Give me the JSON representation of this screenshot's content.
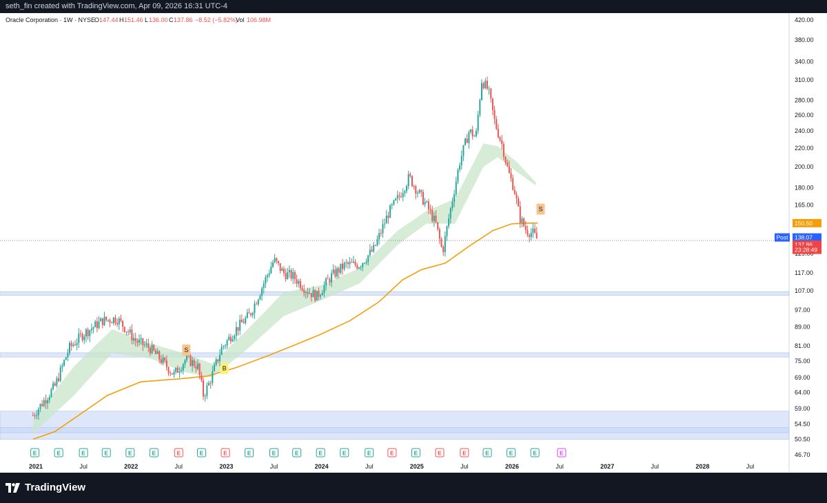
{
  "header": {
    "credit": "seth_fin created with TradingView.com, Apr 09, 2026 16:31 UTC-4"
  },
  "legend": {
    "symbol": "Oracle Corporation · 1W · NYSE",
    "o_label": "O",
    "o": "147.44",
    "h_label": "H",
    "h": "151.46",
    "l_label": "L",
    "l": "136.00",
    "c_label": "C",
    "c": "137.86",
    "change": "−8.52 (−5.82%)",
    "vol_label": "Vol",
    "vol": "106.98M"
  },
  "footer": {
    "brand": "TradingView"
  },
  "colors": {
    "up": "#26a69a",
    "down": "#ef5350",
    "ma": "#f59e0b",
    "ribbon": "#c8e6c9",
    "zone": "#c7d7f5",
    "price_badge": "#ef4444",
    "post_badge": "#2962ff",
    "ma_badge": "#f59e0b"
  },
  "chart_data": {
    "type": "candlestick",
    "scale": "log",
    "ylim": [
      45,
      430
    ],
    "y_ticks": [
      "420.00",
      "380.00",
      "340.00",
      "310.00",
      "280.00",
      "260.00",
      "240.00",
      "220.00",
      "200.00",
      "180.00",
      "165.00",
      "150.50",
      "138.07",
      "137.86",
      "129.00",
      "117.00",
      "107.00",
      "97.00",
      "89.00",
      "81.00",
      "75.00",
      "69.00",
      "64.00",
      "59.00",
      "54.50",
      "50.50",
      "46.70"
    ],
    "x_labels": [
      "2021",
      "Jul",
      "2022",
      "Jul",
      "2023",
      "Jul",
      "2024",
      "Jul",
      "2025",
      "Jul",
      "2026",
      "Jul",
      "2027",
      "Jul",
      "2028",
      "Jul"
    ],
    "price_anchors": [
      {
        "t": 2020.97,
        "p": 57
      },
      {
        "t": 2021.05,
        "p": 60
      },
      {
        "t": 2021.2,
        "p": 66
      },
      {
        "t": 2021.35,
        "p": 80
      },
      {
        "t": 2021.5,
        "p": 86
      },
      {
        "t": 2021.7,
        "p": 92
      },
      {
        "t": 2021.85,
        "p": 93
      },
      {
        "t": 2021.95,
        "p": 88
      },
      {
        "t": 2022.05,
        "p": 83
      },
      {
        "t": 2022.2,
        "p": 80
      },
      {
        "t": 2022.35,
        "p": 74
      },
      {
        "t": 2022.45,
        "p": 70
      },
      {
        "t": 2022.58,
        "p": 76
      },
      {
        "t": 2022.7,
        "p": 73
      },
      {
        "t": 2022.76,
        "p": 63
      },
      {
        "t": 2022.82,
        "p": 67
      },
      {
        "t": 2022.95,
        "p": 80
      },
      {
        "t": 2023.1,
        "p": 88
      },
      {
        "t": 2023.25,
        "p": 95
      },
      {
        "t": 2023.4,
        "p": 112
      },
      {
        "t": 2023.5,
        "p": 125
      },
      {
        "t": 2023.6,
        "p": 117
      },
      {
        "t": 2023.7,
        "p": 115
      },
      {
        "t": 2023.85,
        "p": 107
      },
      {
        "t": 2023.95,
        "p": 104
      },
      {
        "t": 2024.1,
        "p": 115
      },
      {
        "t": 2024.25,
        "p": 122
      },
      {
        "t": 2024.4,
        "p": 122
      },
      {
        "t": 2024.55,
        "p": 132
      },
      {
        "t": 2024.7,
        "p": 158
      },
      {
        "t": 2024.82,
        "p": 173
      },
      {
        "t": 2024.92,
        "p": 190
      },
      {
        "t": 2025.0,
        "p": 178
      },
      {
        "t": 2025.1,
        "p": 165
      },
      {
        "t": 2025.2,
        "p": 150
      },
      {
        "t": 2025.27,
        "p": 130
      },
      {
        "t": 2025.35,
        "p": 160
      },
      {
        "t": 2025.45,
        "p": 205
      },
      {
        "t": 2025.55,
        "p": 240
      },
      {
        "t": 2025.62,
        "p": 232
      },
      {
        "t": 2025.68,
        "p": 310
      },
      {
        "t": 2025.75,
        "p": 295
      },
      {
        "t": 2025.82,
        "p": 250
      },
      {
        "t": 2025.9,
        "p": 222
      },
      {
        "t": 2025.96,
        "p": 195
      },
      {
        "t": 2026.02,
        "p": 180
      },
      {
        "t": 2026.08,
        "p": 155
      },
      {
        "t": 2026.15,
        "p": 145
      },
      {
        "t": 2026.22,
        "p": 143
      },
      {
        "t": 2026.27,
        "p": 138
      }
    ],
    "ma_series": [
      {
        "t": 2020.97,
        "p": 50.5
      },
      {
        "t": 2021.2,
        "p": 52.5
      },
      {
        "t": 2021.45,
        "p": 57
      },
      {
        "t": 2021.75,
        "p": 63
      },
      {
        "t": 2022.1,
        "p": 67.5
      },
      {
        "t": 2022.5,
        "p": 68.5
      },
      {
        "t": 2022.8,
        "p": 69.5
      },
      {
        "t": 2023.1,
        "p": 72.5
      },
      {
        "t": 2023.4,
        "p": 76.5
      },
      {
        "t": 2023.7,
        "p": 81
      },
      {
        "t": 2024.0,
        "p": 86
      },
      {
        "t": 2024.3,
        "p": 92
      },
      {
        "t": 2024.6,
        "p": 101
      },
      {
        "t": 2024.85,
        "p": 113
      },
      {
        "t": 2025.05,
        "p": 119
      },
      {
        "t": 2025.3,
        "p": 123
      },
      {
        "t": 2025.55,
        "p": 134
      },
      {
        "t": 2025.8,
        "p": 145
      },
      {
        "t": 2026.0,
        "p": 150
      },
      {
        "t": 2026.15,
        "p": 150.5
      },
      {
        "t": 2026.27,
        "p": 150.5
      }
    ],
    "ribbon_upper": [
      {
        "t": 2020.97,
        "p": 56
      },
      {
        "t": 2021.4,
        "p": 73
      },
      {
        "t": 2021.8,
        "p": 88
      },
      {
        "t": 2022.2,
        "p": 82
      },
      {
        "t": 2022.55,
        "p": 78
      },
      {
        "t": 2022.85,
        "p": 74
      },
      {
        "t": 2023.2,
        "p": 87
      },
      {
        "t": 2023.6,
        "p": 106
      },
      {
        "t": 2024.0,
        "p": 110
      },
      {
        "t": 2024.4,
        "p": 120
      },
      {
        "t": 2024.8,
        "p": 145
      },
      {
        "t": 2025.1,
        "p": 160
      },
      {
        "t": 2025.4,
        "p": 170
      },
      {
        "t": 2025.7,
        "p": 225
      },
      {
        "t": 2025.85,
        "p": 222
      },
      {
        "t": 2026.05,
        "p": 205
      },
      {
        "t": 2026.25,
        "p": 185
      }
    ],
    "ribbon_lower": [
      {
        "t": 2020.97,
        "p": 52
      },
      {
        "t": 2021.4,
        "p": 63
      },
      {
        "t": 2021.8,
        "p": 78
      },
      {
        "t": 2022.2,
        "p": 76
      },
      {
        "t": 2022.55,
        "p": 71
      },
      {
        "t": 2022.85,
        "p": 69
      },
      {
        "t": 2023.2,
        "p": 79
      },
      {
        "t": 2023.6,
        "p": 94
      },
      {
        "t": 2024.0,
        "p": 102
      },
      {
        "t": 2024.4,
        "p": 111
      },
      {
        "t": 2024.8,
        "p": 135
      },
      {
        "t": 2025.1,
        "p": 150
      },
      {
        "t": 2025.4,
        "p": 150
      },
      {
        "t": 2025.7,
        "p": 200
      },
      {
        "t": 2025.85,
        "p": 210
      },
      {
        "t": 2026.05,
        "p": 195
      },
      {
        "t": 2026.25,
        "p": 182
      }
    ],
    "zones": [
      {
        "low": 104.5,
        "high": 106.5
      },
      {
        "low": 76.5,
        "high": 78.2
      },
      {
        "low": 50.5,
        "high": 58.2
      },
      {
        "low": 52.2,
        "high": 53.6
      }
    ],
    "last_price_line": 137.86,
    "labels": [
      {
        "text": "S",
        "t": 2022.58,
        "p": 79,
        "kind": "sell"
      },
      {
        "text": "B",
        "t": 2022.98,
        "p": 72,
        "kind": "buy"
      },
      {
        "text": "S",
        "t": 2026.3,
        "p": 161,
        "kind": "sell"
      }
    ],
    "price_badges": [
      {
        "value": "150.50",
        "p": 150.5,
        "kind": "ma"
      },
      {
        "prefix": "Post",
        "value": "138.07",
        "p": 140,
        "kind": "post"
      },
      {
        "value": "137.86",
        "p": 135,
        "kind": "price"
      },
      {
        "value": "23:28:49",
        "p": 131.5,
        "kind": "price"
      }
    ],
    "earnings": [
      {
        "t": 2020.99,
        "kind": "up"
      },
      {
        "t": 2021.24,
        "kind": "up"
      },
      {
        "t": 2021.5,
        "kind": "up"
      },
      {
        "t": 2021.74,
        "kind": "up"
      },
      {
        "t": 2021.99,
        "kind": "up"
      },
      {
        "t": 2022.24,
        "kind": "up"
      },
      {
        "t": 2022.5,
        "kind": "down"
      },
      {
        "t": 2022.74,
        "kind": "up"
      },
      {
        "t": 2022.99,
        "kind": "down"
      },
      {
        "t": 2023.24,
        "kind": "up"
      },
      {
        "t": 2023.5,
        "kind": "up"
      },
      {
        "t": 2023.74,
        "kind": "up"
      },
      {
        "t": 2023.99,
        "kind": "up"
      },
      {
        "t": 2024.24,
        "kind": "up"
      },
      {
        "t": 2024.5,
        "kind": "up"
      },
      {
        "t": 2024.74,
        "kind": "down"
      },
      {
        "t": 2024.99,
        "kind": "up"
      },
      {
        "t": 2025.24,
        "kind": "down"
      },
      {
        "t": 2025.5,
        "kind": "down"
      },
      {
        "t": 2025.74,
        "kind": "up"
      },
      {
        "t": 2025.99,
        "kind": "up"
      },
      {
        "t": 2026.24,
        "kind": "up"
      },
      {
        "t": 2026.52,
        "kind": "future"
      }
    ]
  }
}
